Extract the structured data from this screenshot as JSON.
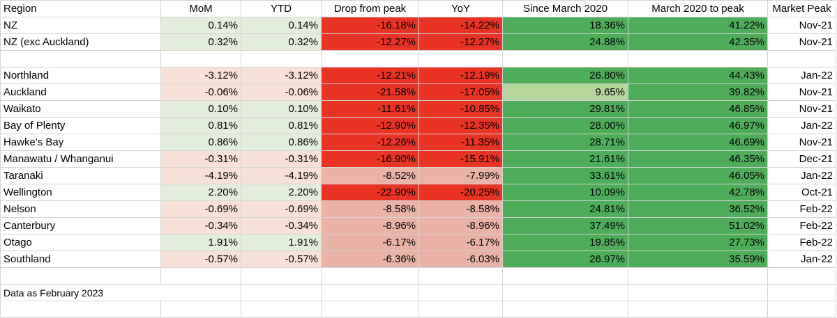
{
  "headers": [
    "Region",
    "MoM",
    "YTD",
    "Drop from peak",
    "YoY",
    "Since March 2020",
    "March 2020 to peak",
    "Market Peak"
  ],
  "colors": {
    "light_green": "#e3efdc",
    "light_red": "#f8e1d6",
    "strong_red": "#e93325",
    "mid_red": "#ebb3a6",
    "strong_green": "#4fad5a",
    "mid_green": "#b6d59d",
    "grid": "#d4d4d4"
  },
  "groups": [
    [
      {
        "region": "NZ",
        "mom": "0.14%",
        "ytd": "0.14%",
        "drop": "-16.18%",
        "yoy": "-14.22%",
        "since": "18.36%",
        "to_peak": "41.22%",
        "peak": "Nov-21"
      },
      {
        "region": "NZ (exc Auckland)",
        "mom": "0.32%",
        "ytd": "0.32%",
        "drop": "-12.27%",
        "yoy": "-12.27%",
        "since": "24.88%",
        "to_peak": "42.35%",
        "peak": "Nov-21"
      }
    ],
    [
      {
        "region": "Northland",
        "mom": "-3.12%",
        "ytd": "-3.12%",
        "drop": "-12.21%",
        "yoy": "-12.19%",
        "since": "26.80%",
        "to_peak": "44.43%",
        "peak": "Jan-22"
      },
      {
        "region": "Auckland",
        "mom": "-0.06%",
        "ytd": "-0.06%",
        "drop": "-21.58%",
        "yoy": "-17.05%",
        "since": "9.65%",
        "to_peak": "39.82%",
        "peak": "Nov-21"
      },
      {
        "region": "Waikato",
        "mom": "0.10%",
        "ytd": "0.10%",
        "drop": "-11.61%",
        "yoy": "-10.85%",
        "since": "29.81%",
        "to_peak": "46.85%",
        "peak": "Nov-21"
      },
      {
        "region": "Bay of Plenty",
        "mom": "0.81%",
        "ytd": "0.81%",
        "drop": "-12.90%",
        "yoy": "-12.35%",
        "since": "28.00%",
        "to_peak": "46.97%",
        "peak": "Jan-22"
      },
      {
        "region": "Hawke's Bay",
        "mom": "0.86%",
        "ytd": "0.86%",
        "drop": "-12.26%",
        "yoy": "-11.35%",
        "since": "28.71%",
        "to_peak": "46.69%",
        "peak": "Nov-21"
      },
      {
        "region": "Manawatu / Whanganui",
        "mom": "-0.31%",
        "ytd": "-0.31%",
        "drop": "-16.90%",
        "yoy": "-15.91%",
        "since": "21.61%",
        "to_peak": "46.35%",
        "peak": "Dec-21"
      },
      {
        "region": "Taranaki",
        "mom": "-4.19%",
        "ytd": "-4.19%",
        "drop": "-8.52%",
        "yoy": "-7.99%",
        "since": "33.61%",
        "to_peak": "46.05%",
        "peak": "Jan-22"
      },
      {
        "region": "Wellington",
        "mom": "2.20%",
        "ytd": "2.20%",
        "drop": "-22.90%",
        "yoy": "-20.25%",
        "since": "10.09%",
        "to_peak": "42.78%",
        "peak": "Oct-21"
      },
      {
        "region": "Nelson",
        "mom": "-0.69%",
        "ytd": "-0.69%",
        "drop": "-8.58%",
        "yoy": "-8.58%",
        "since": "24.81%",
        "to_peak": "36.52%",
        "peak": "Feb-22"
      },
      {
        "region": "Canterbury",
        "mom": "-0.34%",
        "ytd": "-0.34%",
        "drop": "-8.96%",
        "yoy": "-8.96%",
        "since": "37.49%",
        "to_peak": "51.02%",
        "peak": "Feb-22"
      },
      {
        "region": "Otago",
        "mom": "1.91%",
        "ytd": "1.91%",
        "drop": "-6.17%",
        "yoy": "-6.17%",
        "since": "19.85%",
        "to_peak": "27.73%",
        "peak": "Feb-22"
      },
      {
        "region": "Southland",
        "mom": "-0.57%",
        "ytd": "-0.57%",
        "drop": "-6.36%",
        "yoy": "-6.03%",
        "since": "26.97%",
        "to_peak": "35.59%",
        "peak": "Jan-22"
      }
    ]
  ],
  "footnote": "Data as February 2023"
}
